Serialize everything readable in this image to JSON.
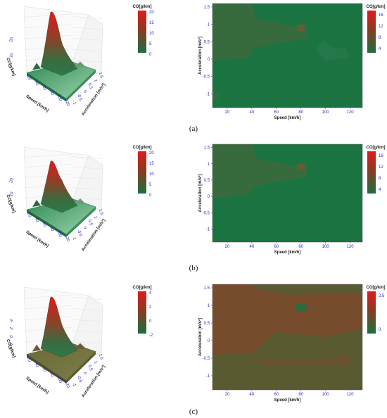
{
  "colors": {
    "low": "#1a7040",
    "mid": "#6f5a35",
    "high": "#e01b1b",
    "tick": "#2a2ad0"
  },
  "chart_data": [
    {
      "panel": "(a)",
      "type": "surface",
      "colorbar_title": "CO[g/km]",
      "colorbar_ticks": [
        "20",
        "15",
        "10",
        "5",
        "0"
      ],
      "z_ticks": [
        "20",
        "10"
      ],
      "z_label": "CO[g/km]",
      "x_ticks": [
        "20",
        "40",
        "60",
        "80",
        "100",
        "120"
      ],
      "x_label": "Speed [km/h]",
      "y_ticks": [
        "1.5",
        "1",
        "0.5",
        "0",
        "-0.5",
        "-1"
      ],
      "y_label": "Acceleration [m/s²]",
      "zlim": [
        0,
        20
      ],
      "peak": {
        "speed": 15,
        "acceleration": 1.2,
        "co": 20
      }
    },
    {
      "panel": "(a)",
      "type": "heatmap",
      "colorbar_title": "CO[g/km]",
      "colorbar_ticks": [
        "16",
        "12",
        "8",
        "4"
      ],
      "x_label": "Speed [km/h]",
      "x_ticks": [
        "20",
        "40",
        "60",
        "80",
        "100",
        "120"
      ],
      "y_label": "Acceleration [m/s²]",
      "y_ticks": [
        "1.5",
        "1",
        "0.5",
        "0",
        "-0.5",
        "-1"
      ],
      "xlim": [
        8,
        130
      ],
      "ylim": [
        -1.4,
        1.6
      ],
      "zlim": [
        0,
        18
      ]
    },
    {
      "panel": "(b)",
      "type": "surface",
      "colorbar_title": "CO[g/km]",
      "colorbar_ticks": [
        "20",
        "15",
        "10",
        "5",
        "0"
      ],
      "z_ticks": [
        "20",
        "10"
      ],
      "z_label": "CO[g/km]",
      "x_ticks": [
        "20",
        "40",
        "60",
        "80",
        "100",
        "120"
      ],
      "x_label": "Speed [km/h]",
      "y_ticks": [
        "1.5",
        "1",
        "0.5",
        "0",
        "-0.5",
        "-1"
      ],
      "y_label": "Acceleration [m/s²]",
      "zlim": [
        0,
        20
      ],
      "peak": {
        "speed": 15,
        "acceleration": 1.2,
        "co": 17
      }
    },
    {
      "panel": "(b)",
      "type": "heatmap",
      "colorbar_title": "CO[g/km]",
      "colorbar_ticks": [
        "16",
        "12",
        "8",
        "4"
      ],
      "x_label": "Speed [km/h]",
      "x_ticks": [
        "20",
        "40",
        "60",
        "80",
        "100",
        "120"
      ],
      "y_label": "Acceleration [m/s²]",
      "y_ticks": [
        "1.5",
        "1",
        "0.5",
        "0",
        "-0.5",
        "-1"
      ],
      "xlim": [
        8,
        130
      ],
      "ylim": [
        -1.4,
        1.6
      ],
      "zlim": [
        0,
        18
      ]
    },
    {
      "panel": "(c)",
      "type": "surface",
      "colorbar_title": "CO[g/km]",
      "colorbar_ticks": [
        "4",
        "2",
        "0",
        "-2"
      ],
      "z_ticks": [
        "4",
        "2",
        "0",
        "-2"
      ],
      "z_label": "CO[g/km]",
      "x_ticks": [
        "20",
        "40",
        "60",
        "80",
        "100",
        "120"
      ],
      "x_label": "Speed [km/h]",
      "y_ticks": [
        "1.5",
        "1",
        "0.5",
        "0",
        "-0.5",
        "-1"
      ],
      "y_label": "Acceleration [m/s²]",
      "zlim": [
        -2,
        5
      ],
      "peak": {
        "speed": 15,
        "acceleration": 1.2,
        "co": 4.5
      }
    },
    {
      "panel": "(c)",
      "type": "heatmap",
      "colorbar_title": "CO[g/km]",
      "colorbar_ticks": [
        "2.5",
        "0"
      ],
      "x_label": "Speed [km/h]",
      "x_ticks": [
        "20",
        "40",
        "60",
        "80",
        "100",
        "120"
      ],
      "y_label": "Acceleration [m/s²]",
      "y_ticks": [
        "1.5",
        "1",
        "0.5",
        "0",
        "-0.5",
        "-1"
      ],
      "xlim": [
        8,
        130
      ],
      "ylim": [
        -1.4,
        1.6
      ],
      "zlim": [
        -1,
        4
      ]
    }
  ]
}
